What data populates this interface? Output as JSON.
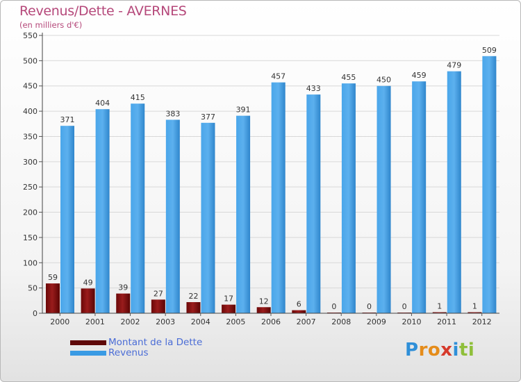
{
  "title": "Revenus/Dette - AVERNES",
  "subtitle": "(en milliers d'€)",
  "logo": {
    "letters": [
      {
        "ch": "P",
        "color": "#2f8fd8"
      },
      {
        "ch": "r",
        "color": "#e58c1a"
      },
      {
        "ch": "o",
        "color": "#e58c1a"
      },
      {
        "ch": "x",
        "color": "#d63a2c"
      },
      {
        "ch": "i",
        "color": "#2f8fd8"
      },
      {
        "ch": "t",
        "color": "#8fbf3a"
      },
      {
        "ch": "i",
        "color": "#8fbf3a"
      }
    ]
  },
  "colors": {
    "dette": "#8a1010",
    "revenus": "#3a9be4",
    "grid": "#d8d8d8"
  },
  "chart_data": {
    "type": "bar",
    "categories": [
      "2000",
      "2001",
      "2002",
      "2003",
      "2004",
      "2005",
      "2006",
      "2007",
      "2008",
      "2009",
      "2010",
      "2011",
      "2012"
    ],
    "series": [
      {
        "name": "Montant de la Dette",
        "values": [
          59,
          49,
          39,
          27,
          22,
          17,
          12,
          6,
          0,
          0,
          0,
          1,
          1
        ]
      },
      {
        "name": "Revenus",
        "values": [
          371,
          404,
          415,
          383,
          377,
          391,
          457,
          433,
          455,
          450,
          459,
          479,
          509
        ]
      }
    ],
    "ylim": [
      0,
      550
    ],
    "yticks": [
      0,
      50,
      100,
      150,
      200,
      250,
      300,
      350,
      400,
      450,
      500,
      550
    ],
    "grid": true,
    "legend": "bottom-left"
  }
}
